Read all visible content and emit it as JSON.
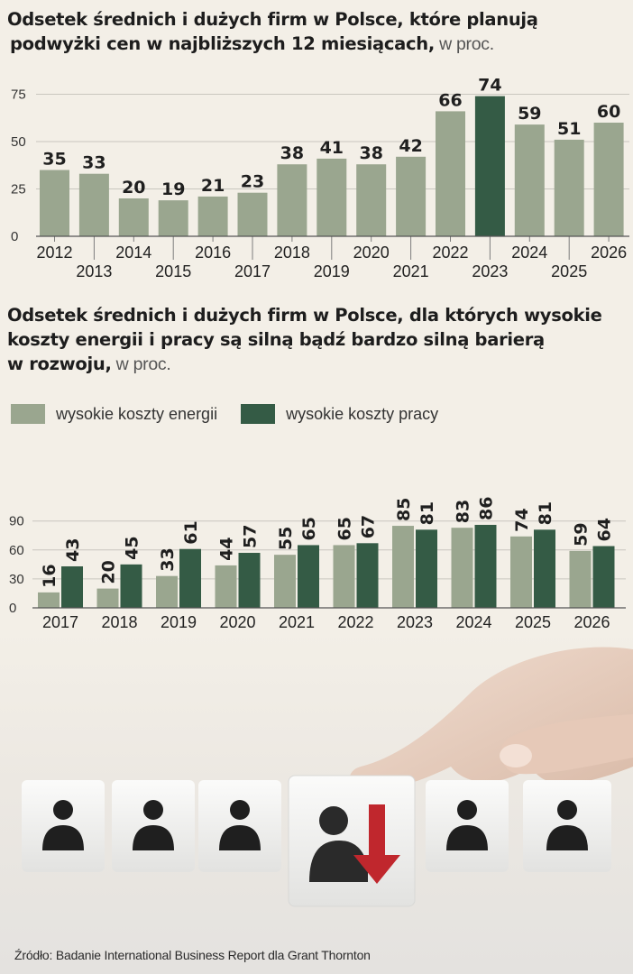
{
  "colors": {
    "background": "#f3efe7",
    "energy": "#9aa68f",
    "labor": "#345b45",
    "highlight": "#345b45",
    "bar": "#9aa68f",
    "arrow": "#c0272d"
  },
  "chart1": {
    "title_bold_1": "Odsetek średnich i dużych firm w Polsce, które planują",
    "title_bold_2": "podwyżki cen w najbliższych 12 miesiącach,",
    "title_unit": " w proc."
  },
  "chart2": {
    "title_bold_1": "Odsetek średnich i dużych firm w Polsce, dla których wysokie",
    "title_bold_2": "koszty energii i pracy są silną bądź bardzo silną barierą",
    "title_bold_3": "w rozwoju,",
    "title_unit": " w proc.",
    "legend": [
      "wysokie koszty energii",
      "wysokie koszty pracy"
    ]
  },
  "source": "Źródło: Badanie International Business Report dla Grant Thornton",
  "chart_data": [
    {
      "type": "bar",
      "title": "Odsetek średnich i dużych firm w Polsce, które planują podwyżki cen w najbliższych 12 miesiącach, w proc.",
      "categories": [
        "2012",
        "2013",
        "2014",
        "2015",
        "2016",
        "2017",
        "2018",
        "2019",
        "2020",
        "2021",
        "2022",
        "2023",
        "2024",
        "2025",
        "2026"
      ],
      "values": [
        35,
        33,
        20,
        19,
        21,
        23,
        38,
        41,
        38,
        42,
        66,
        74,
        59,
        51,
        60
      ],
      "highlight_index": 11,
      "ylim": [
        0,
        80
      ],
      "yticks": [
        0,
        25,
        50,
        75
      ],
      "grid": true,
      "data_labels": true
    },
    {
      "type": "bar",
      "title": "Odsetek średnich i dużych firm w Polsce, dla których wysokie koszty energii i pracy są silną bądź bardzo silną barierą w rozwoju, w proc.",
      "categories": [
        "2017",
        "2018",
        "2019",
        "2020",
        "2021",
        "2022",
        "2023",
        "2024",
        "2025",
        "2026"
      ],
      "series": [
        {
          "name": "wysokie koszty energii",
          "values": [
            16,
            20,
            33,
            44,
            55,
            65,
            85,
            83,
            74,
            59
          ]
        },
        {
          "name": "wysokie koszty pracy",
          "values": [
            43,
            45,
            61,
            57,
            65,
            67,
            81,
            86,
            81,
            64
          ]
        }
      ],
      "ylim": [
        0,
        100
      ],
      "yticks": [
        0,
        30,
        60,
        90
      ],
      "grid": true,
      "legend_position": "top-left",
      "data_labels": true
    }
  ]
}
